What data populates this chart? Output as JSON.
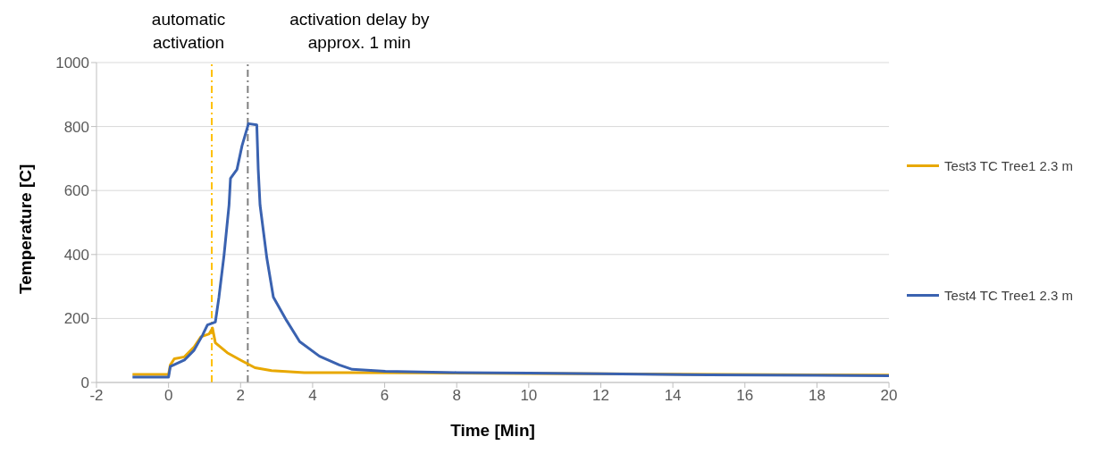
{
  "chart_data": {
    "type": "line",
    "xlabel": "Time [Min]",
    "ylabel": "Temperature [C]",
    "xlim": [
      -2,
      20
    ],
    "xticks": [
      -2,
      0,
      2,
      4,
      6,
      8,
      10,
      12,
      14,
      16,
      18,
      20
    ],
    "ylim": [
      0,
      1000
    ],
    "yticks": [
      0,
      200,
      400,
      600,
      800,
      1000
    ],
    "grid": "y",
    "legend": "right",
    "marker": "none",
    "line_style": "solid",
    "series": [
      {
        "name": "Test3 TC Tree1 2.3 m",
        "color": "#e8a800",
        "x": [
          -1,
          0,
          0.05,
          0.16,
          0.44,
          0.71,
          0.9,
          1.13,
          1.22,
          1.3,
          1.63,
          2.0,
          2.4,
          2.86,
          3.77,
          5,
          7,
          10,
          12,
          18,
          20
        ],
        "values": [
          25,
          25,
          55,
          74,
          80,
          111,
          143,
          152,
          170,
          124,
          93,
          70,
          46,
          37,
          31,
          31,
          30,
          28,
          27,
          24,
          23
        ]
      },
      {
        "name": "Test4 TC Tree1 2.3 m",
        "color": "#3a62b0",
        "x": [
          -1,
          0,
          0.05,
          0.44,
          0.71,
          0.94,
          1.08,
          1.3,
          1.4,
          1.54,
          1.68,
          1.72,
          1.9,
          2.04,
          2.22,
          2.45,
          2.49,
          2.54,
          2.73,
          2.91,
          3.28,
          3.64,
          4.19,
          4.74,
          5.1,
          6.02,
          8,
          10,
          12,
          15,
          18,
          20
        ],
        "values": [
          17,
          17,
          50,
          70,
          101,
          147,
          180,
          189,
          267,
          397,
          555,
          638,
          666,
          740,
          809,
          805,
          666,
          555,
          388,
          267,
          193,
          128,
          82,
          55,
          41,
          35,
          31,
          29,
          27,
          24,
          22,
          21
        ]
      }
    ],
    "ref_lines": [
      {
        "axis": "x",
        "value": 1.2,
        "label": "automatic activation",
        "color": "#ffc000",
        "line_style": "dashdot"
      },
      {
        "axis": "x",
        "value": 2.2,
        "label": "activation delay by approx. 1 min",
        "color": "#808080",
        "line_style": "dashdot"
      }
    ]
  }
}
